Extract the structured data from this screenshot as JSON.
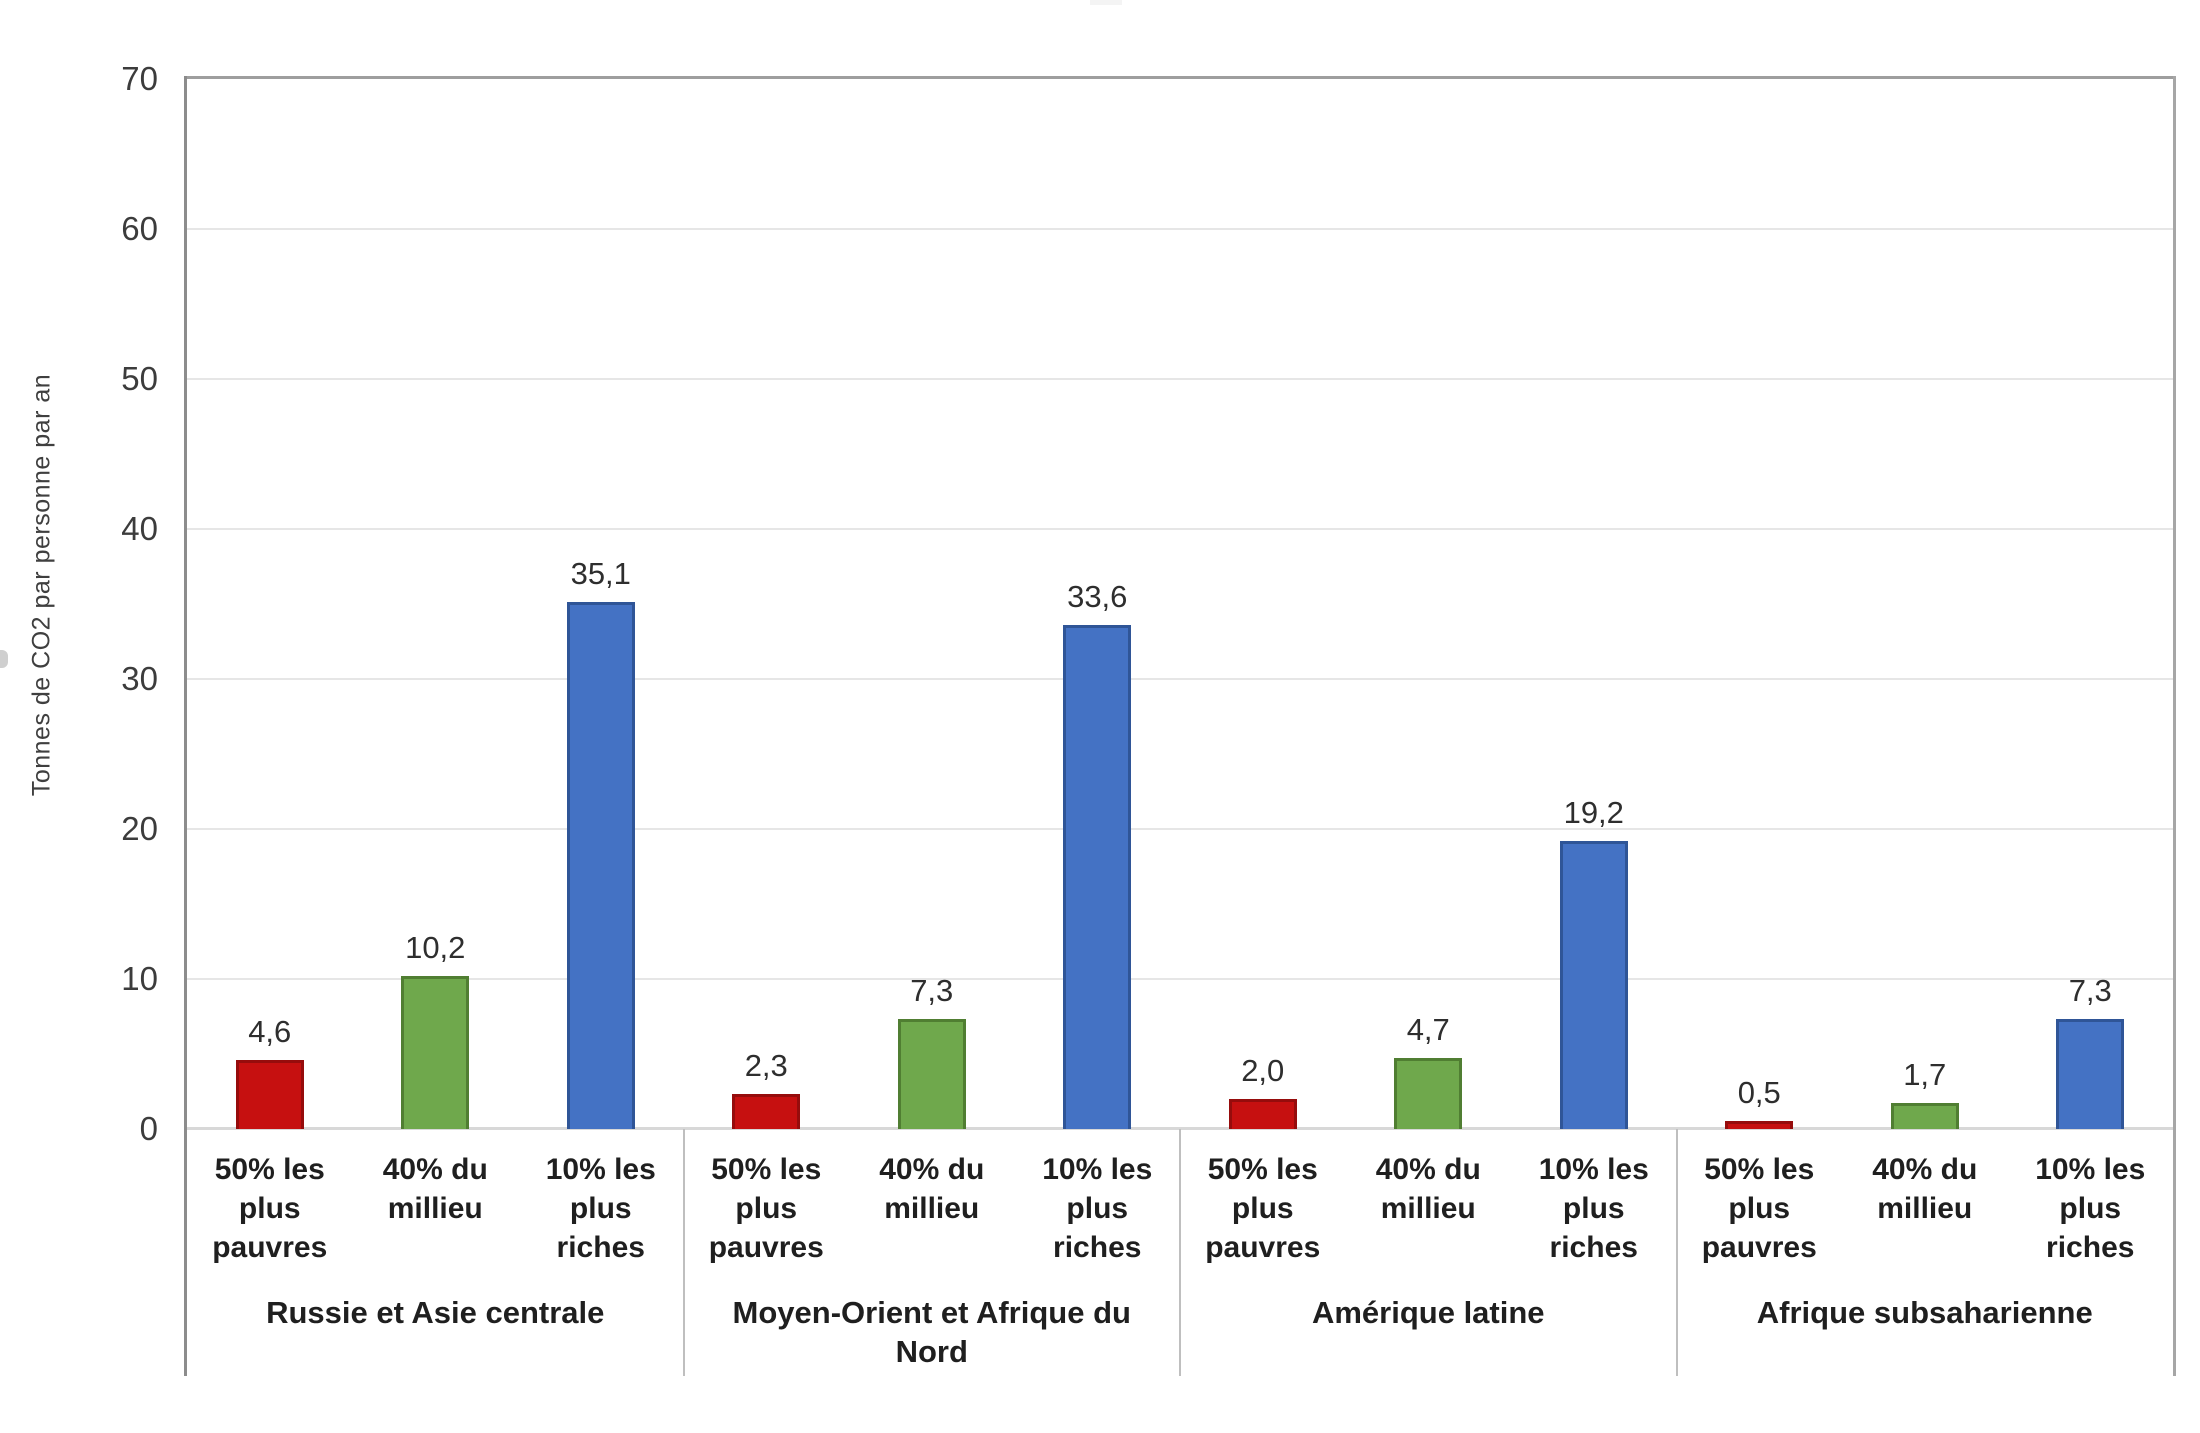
{
  "chart_data": {
    "type": "bar",
    "title": "",
    "ylabel": "Tonnes de CO2 par personne par an",
    "xlabel": "",
    "ylim": [
      0,
      70
    ],
    "yticks": [
      0,
      10,
      20,
      30,
      40,
      50,
      60,
      70
    ],
    "grid": true,
    "legend_position": "none",
    "decimal_separator": ",",
    "categories": [
      "50% les plus pauvres",
      "40% du millieu",
      "10% les plus riches"
    ],
    "categories_lines": [
      [
        "50% les",
        "plus",
        "pauvres"
      ],
      [
        "40% du",
        "millieu"
      ],
      [
        "10% les",
        "plus",
        "riches"
      ]
    ],
    "series_colors": [
      {
        "name": "50% les plus pauvres",
        "fill": "#c61010",
        "border": "#960c0c"
      },
      {
        "name": "40% du millieu",
        "fill": "#6fa84c",
        "border": "#507e32"
      },
      {
        "name": "10% les plus riches",
        "fill": "#4472c4",
        "border": "#2f5597"
      }
    ],
    "groups": [
      {
        "label": "Russie et Asie centrale",
        "label_lines": [
          "Russie et Asie centrale"
        ],
        "values": [
          4.6,
          10.2,
          35.1
        ],
        "value_labels": [
          "4,6",
          "10,2",
          "35,1"
        ]
      },
      {
        "label": "Moyen-Orient et Afrique du Nord",
        "label_lines": [
          "Moyen-Orient et Afrique du",
          "Nord"
        ],
        "values": [
          2.3,
          7.3,
          33.6
        ],
        "value_labels": [
          "2,3",
          "7,3",
          "33,6"
        ]
      },
      {
        "label": "Amérique latine",
        "label_lines": [
          "Amérique latine"
        ],
        "values": [
          2.0,
          4.7,
          19.2
        ],
        "value_labels": [
          "2,0",
          "4,7",
          "19,2"
        ]
      },
      {
        "label": "Afrique subsaharienne",
        "label_lines": [
          "Afrique subsaharienne"
        ],
        "values": [
          0.5,
          1.7,
          7.3
        ],
        "value_labels": [
          "0,5",
          "1,7",
          "7,3"
        ]
      }
    ]
  }
}
